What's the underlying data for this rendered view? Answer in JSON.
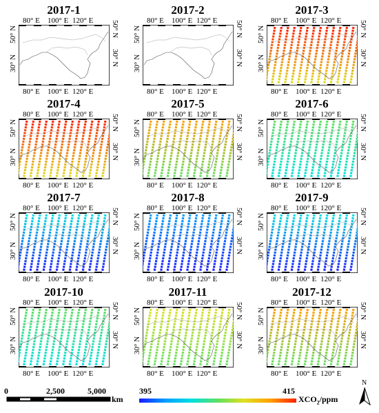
{
  "panels": [
    {
      "title": "2017-1",
      "level": null
    },
    {
      "title": "2017-2",
      "level": null
    },
    {
      "title": "2017-3",
      "level": 0.85
    },
    {
      "title": "2017-4",
      "level": 0.8
    },
    {
      "title": "2017-5",
      "level": 0.75
    },
    {
      "title": "2017-6",
      "level": 0.45
    },
    {
      "title": "2017-7",
      "level": 0.2
    },
    {
      "title": "2017-8",
      "level": 0.12
    },
    {
      "title": "2017-9",
      "level": 0.25
    },
    {
      "title": "2017-10",
      "level": 0.45
    },
    {
      "title": "2017-11",
      "level": 0.6
    },
    {
      "title": "2017-12",
      "level": 0.7
    }
  ],
  "axis_labels": {
    "lon": [
      "80° E",
      "100° E",
      "120° E"
    ],
    "lat": [
      "50° N",
      "30° N"
    ]
  },
  "scale_bar": {
    "ticks": [
      "0",
      "2,500",
      "5,000"
    ],
    "unit": "km"
  },
  "colorbar": {
    "min": "395",
    "max": "415",
    "label_prefix": "XCO",
    "label_sub": "2",
    "label_suffix": "/ppm",
    "colors": [
      "#1a1aff",
      "#00a0ff",
      "#00e0e0",
      "#60e060",
      "#e0e020",
      "#ffa000",
      "#ff2000"
    ]
  },
  "north_arrow": {
    "label": "N"
  }
}
